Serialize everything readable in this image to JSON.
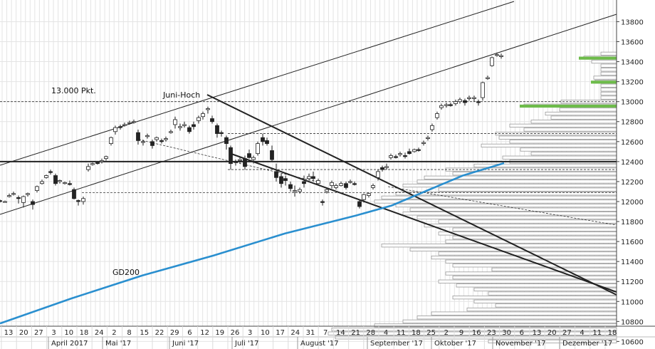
{
  "chart_data": {
    "type": "candlestick",
    "title": "",
    "xlabel": "",
    "ylabel": "",
    "ylim": [
      10500,
      13900
    ],
    "y_ticks": [
      10600,
      10800,
      11000,
      11200,
      11400,
      11600,
      11800,
      12000,
      12200,
      12400,
      12600,
      12800,
      13000,
      13200,
      13400,
      13600,
      13800
    ],
    "x_day_labels": [
      "13",
      "20",
      "27",
      "3",
      "10",
      "18",
      "24",
      "2",
      "8",
      "15",
      "22",
      "29",
      "6",
      "12",
      "19",
      "26",
      "3",
      "10",
      "17",
      "24",
      "31",
      "7",
      "14",
      "21",
      "28",
      "4",
      "11",
      "18",
      "25",
      "2",
      "9",
      "16",
      "23",
      "30",
      "6",
      "13",
      "20",
      "27",
      "4",
      "11",
      "18"
    ],
    "month_labels": [
      "April 2017",
      "Mai '17",
      "Juni '17",
      "Juli '17",
      "August '17",
      "September '17",
      "Oktober '17",
      "November '17",
      "Dezember '17"
    ],
    "annotations": {
      "level_13000": "13.000 Pkt.",
      "june_high": "Juni-Hoch",
      "ma_label": "GD200"
    },
    "moving_average": {
      "name": "GD200",
      "x": [
        0,
        100,
        200,
        300,
        400,
        500,
        550,
        600,
        650,
        708
      ],
      "values": [
        10780,
        11030,
        11260,
        11460,
        11680,
        11860,
        11960,
        12110,
        12260,
        12385
      ]
    },
    "ohlc": [
      [
        0,
        12010,
        12020,
        11990,
        12000
      ],
      [
        7,
        12000,
        12010,
        11990,
        12000
      ],
      [
        13,
        12050,
        12080,
        12040,
        12060
      ],
      [
        19,
        12080,
        12100,
        12060,
        12080
      ],
      [
        26,
        12040,
        12060,
        11980,
        12030
      ],
      [
        33,
        11990,
        12060,
        11940,
        12050
      ],
      [
        39,
        12070,
        12090,
        12050,
        12080
      ],
      [
        46,
        12000,
        12020,
        11920,
        11970
      ],
      [
        52,
        12110,
        12160,
        12090,
        12150
      ],
      [
        59,
        12180,
        12220,
        12170,
        12200
      ],
      [
        65,
        12240,
        12270,
        12230,
        12260
      ],
      [
        71,
        12300,
        12320,
        12270,
        12290
      ],
      [
        78,
        12260,
        12280,
        12160,
        12180
      ],
      [
        84,
        12200,
        12220,
        12180,
        12210
      ],
      [
        91,
        12180,
        12200,
        12170,
        12190
      ],
      [
        98,
        12180,
        12210,
        12160,
        12170
      ],
      [
        104,
        12120,
        12140,
        12020,
        12030
      ],
      [
        110,
        12010,
        12020,
        11960,
        12000
      ],
      [
        117,
        12000,
        12050,
        11970,
        12030
      ],
      [
        124,
        12320,
        12380,
        12300,
        12350
      ],
      [
        130,
        12370,
        12390,
        12360,
        12380
      ],
      [
        137,
        12390,
        12400,
        12370,
        12380
      ],
      [
        143,
        12400,
        12430,
        12380,
        12410
      ],
      [
        149,
        12430,
        12460,
        12410,
        12450
      ],
      [
        156,
        12580,
        12650,
        12560,
        12640
      ],
      [
        162,
        12700,
        12760,
        12670,
        12740
      ],
      [
        169,
        12750,
        12770,
        12720,
        12740
      ],
      [
        175,
        12770,
        12790,
        12750,
        12770
      ],
      [
        182,
        12790,
        12810,
        12770,
        12790
      ],
      [
        188,
        12800,
        12820,
        12780,
        12800
      ],
      [
        194,
        12690,
        12720,
        12570,
        12610
      ],
      [
        201,
        12600,
        12620,
        12560,
        12600
      ],
      [
        207,
        12650,
        12680,
        12630,
        12660
      ],
      [
        214,
        12600,
        12620,
        12530,
        12560
      ],
      [
        220,
        12620,
        12650,
        12600,
        12640
      ],
      [
        227,
        12610,
        12630,
        12580,
        12600
      ],
      [
        233,
        12620,
        12650,
        12600,
        12630
      ],
      [
        240,
        12690,
        12720,
        12680,
        12700
      ],
      [
        246,
        12770,
        12850,
        12730,
        12820
      ],
      [
        253,
        12740,
        12780,
        12710,
        12750
      ],
      [
        259,
        12760,
        12800,
        12740,
        12770
      ],
      [
        266,
        12740,
        12760,
        12680,
        12700
      ],
      [
        272,
        12770,
        12800,
        12720,
        12750
      ],
      [
        279,
        12810,
        12860,
        12780,
        12840
      ],
      [
        285,
        12850,
        12900,
        12820,
        12880
      ],
      [
        292,
        12920,
        12950,
        12880,
        12930
      ],
      [
        298,
        12830,
        12860,
        12780,
        12800
      ],
      [
        305,
        12760,
        12780,
        12640,
        12680
      ],
      [
        311,
        12690,
        12710,
        12650,
        12680
      ],
      [
        318,
        12640,
        12660,
        12520,
        12580
      ],
      [
        324,
        12540,
        12560,
        12320,
        12380
      ],
      [
        331,
        12400,
        12420,
        12360,
        12390
      ],
      [
        337,
        12410,
        12450,
        12380,
        12420
      ],
      [
        344,
        12430,
        12460,
        12320,
        12350
      ],
      [
        350,
        12480,
        12520,
        12430,
        12440
      ],
      [
        356,
        12420,
        12460,
        12380,
        12440
      ],
      [
        362,
        12480,
        12600,
        12460,
        12580
      ],
      [
        369,
        12640,
        12680,
        12560,
        12600
      ],
      [
        375,
        12610,
        12640,
        12560,
        12580
      ],
      [
        382,
        12510,
        12560,
        12400,
        12420
      ],
      [
        388,
        12300,
        12380,
        12200,
        12240
      ],
      [
        395,
        12250,
        12280,
        12140,
        12180
      ],
      [
        401,
        12230,
        12260,
        12160,
        12210
      ],
      [
        408,
        12170,
        12200,
        12100,
        12130
      ],
      [
        414,
        12100,
        12160,
        12050,
        12110
      ],
      [
        421,
        12100,
        12140,
        12080,
        12120
      ],
      [
        427,
        12200,
        12260,
        12140,
        12180
      ],
      [
        434,
        12230,
        12280,
        12210,
        12250
      ],
      [
        440,
        12250,
        12300,
        12200,
        12230
      ],
      [
        447,
        12180,
        12230,
        12160,
        12210
      ],
      [
        453,
        12000,
        12020,
        11960,
        11990
      ],
      [
        459,
        12100,
        12140,
        12080,
        12120
      ],
      [
        466,
        12160,
        12210,
        12130,
        12190
      ],
      [
        472,
        12140,
        12180,
        12120,
        12160
      ],
      [
        479,
        12160,
        12200,
        12150,
        12180
      ],
      [
        486,
        12180,
        12200,
        12120,
        12140
      ],
      [
        492,
        12200,
        12220,
        12180,
        12200
      ],
      [
        498,
        12180,
        12200,
        12160,
        12170
      ],
      [
        505,
        12000,
        12020,
        11930,
        11950
      ],
      [
        511,
        12020,
        12080,
        11990,
        12070
      ],
      [
        518,
        12060,
        12090,
        12040,
        12080
      ],
      [
        524,
        12140,
        12180,
        12120,
        12160
      ],
      [
        531,
        12240,
        12320,
        12210,
        12300
      ],
      [
        537,
        12340,
        12360,
        12300,
        12320
      ],
      [
        543,
        12340,
        12380,
        12320,
        12350
      ],
      [
        549,
        12440,
        12480,
        12420,
        12460
      ],
      [
        556,
        12450,
        12470,
        12430,
        12440
      ],
      [
        562,
        12470,
        12500,
        12450,
        12480
      ],
      [
        569,
        12460,
        12490,
        12430,
        12450
      ],
      [
        575,
        12500,
        12530,
        12470,
        12480
      ],
      [
        582,
        12500,
        12530,
        12490,
        12520
      ],
      [
        588,
        12520,
        12540,
        12500,
        12510
      ],
      [
        595,
        12580,
        12610,
        12560,
        12590
      ],
      [
        601,
        12630,
        12660,
        12610,
        12640
      ],
      [
        607,
        12720,
        12780,
        12700,
        12760
      ],
      [
        614,
        12840,
        12900,
        12820,
        12880
      ],
      [
        620,
        12940,
        12980,
        12920,
        12960
      ],
      [
        627,
        12960,
        12990,
        12940,
        12970
      ],
      [
        633,
        12970,
        12990,
        12950,
        12960
      ],
      [
        640,
        12980,
        13020,
        12960,
        13000
      ],
      [
        646,
        13000,
        13040,
        12980,
        13020
      ],
      [
        653,
        13010,
        13030,
        12960,
        12990
      ],
      [
        659,
        13030,
        13060,
        13010,
        13040
      ],
      [
        666,
        13030,
        13060,
        13000,
        13040
      ],
      [
        672,
        13000,
        13020,
        12960,
        12990
      ],
      [
        678,
        13040,
        13200,
        13010,
        13190
      ],
      [
        685,
        13230,
        13260,
        13220,
        13240
      ],
      [
        691,
        13360,
        13450,
        13350,
        13440
      ],
      [
        698,
        13470,
        13490,
        13450,
        13470
      ],
      [
        704,
        13450,
        13480,
        13430,
        13460
      ]
    ],
    "volume_profile": [
      [
        13480,
        22
      ],
      [
        13440,
        46
      ],
      [
        13400,
        35
      ],
      [
        13360,
        22
      ],
      [
        13320,
        22
      ],
      [
        13280,
        22
      ],
      [
        13240,
        32
      ],
      [
        13200,
        30
      ],
      [
        13160,
        22
      ],
      [
        13120,
        22
      ],
      [
        13080,
        22
      ],
      [
        13040,
        22
      ],
      [
        13000,
        78
      ],
      [
        12960,
        130
      ],
      [
        12920,
        80
      ],
      [
        12880,
        100
      ],
      [
        12840,
        92
      ],
      [
        12800,
        120
      ],
      [
        12760,
        150
      ],
      [
        12720,
        130
      ],
      [
        12680,
        170
      ],
      [
        12640,
        165
      ],
      [
        12600,
        150
      ],
      [
        12560,
        190
      ],
      [
        12520,
        135
      ],
      [
        12480,
        120
      ],
      [
        12440,
        160
      ],
      [
        12400,
        150
      ],
      [
        12360,
        200
      ],
      [
        12320,
        240
      ],
      [
        12280,
        230
      ],
      [
        12240,
        270
      ],
      [
        12200,
        280
      ],
      [
        12160,
        300
      ],
      [
        12120,
        250
      ],
      [
        12080,
        310
      ],
      [
        12040,
        330
      ],
      [
        12000,
        340
      ],
      [
        11960,
        310
      ],
      [
        11920,
        290
      ],
      [
        11880,
        300
      ],
      [
        11840,
        280
      ],
      [
        11800,
        250
      ],
      [
        11760,
        270
      ],
      [
        11720,
        230
      ],
      [
        11680,
        250
      ],
      [
        11640,
        230
      ],
      [
        11600,
        240
      ],
      [
        11560,
        330
      ],
      [
        11520,
        290
      ],
      [
        11480,
        250
      ],
      [
        11440,
        260
      ],
      [
        11400,
        240
      ],
      [
        11360,
        230
      ],
      [
        11320,
        175
      ],
      [
        11280,
        240
      ],
      [
        11240,
        230
      ],
      [
        11200,
        250
      ],
      [
        11160,
        225
      ],
      [
        11120,
        200
      ],
      [
        11080,
        180
      ],
      [
        11040,
        230
      ],
      [
        11000,
        200
      ],
      [
        10960,
        170
      ],
      [
        10920,
        210
      ],
      [
        10880,
        260
      ],
      [
        10840,
        280
      ],
      [
        10800,
        300
      ],
      [
        10760,
        340
      ],
      [
        10720,
        400
      ],
      [
        10680,
        405
      ],
      [
        10640,
        395
      ],
      [
        10600,
        180
      ]
    ],
    "green_zones": [
      [
        13420,
        13450
      ],
      [
        13180,
        13210
      ],
      [
        12940,
        12970
      ]
    ],
    "horizontal_lines": [
      12400
    ],
    "dashed_levels": [
      13000,
      12680,
      12320,
      12090
    ]
  }
}
